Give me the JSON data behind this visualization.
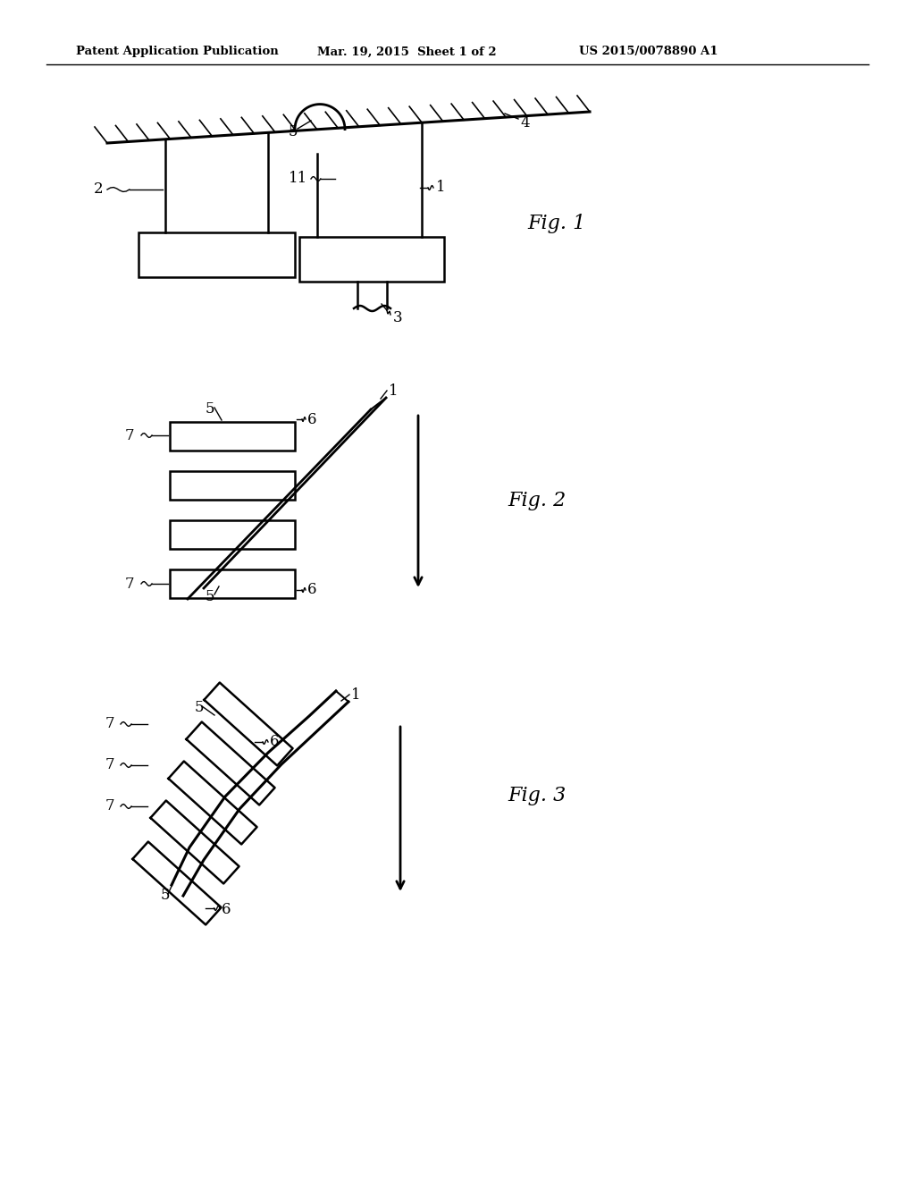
{
  "bg_color": "#ffffff",
  "line_color": "#000000",
  "header_left": "Patent Application Publication",
  "header_mid": "Mar. 19, 2015  Sheet 1 of 2",
  "header_right": "US 2015/0078890 A1",
  "fig1_label": "Fig. 1",
  "fig2_label": "Fig. 2",
  "fig3_label": "Fig. 3"
}
